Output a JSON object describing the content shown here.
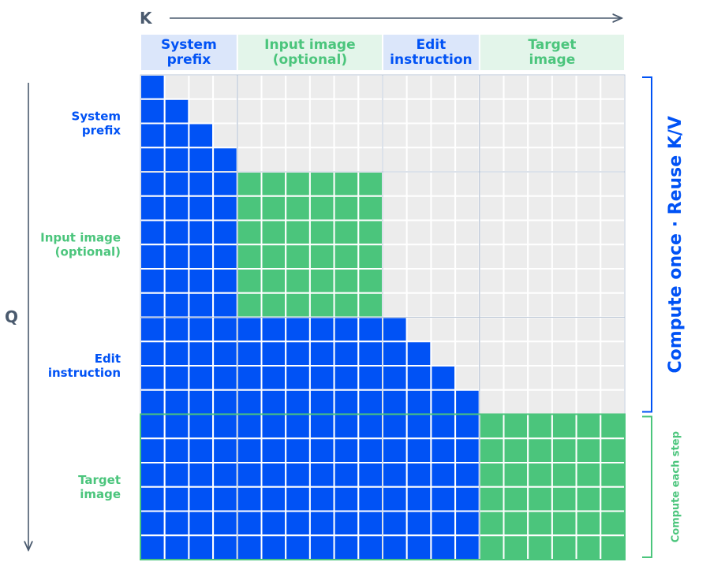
{
  "axes": {
    "k_label": "K",
    "q_label": "Q"
  },
  "colors": {
    "blue": "#0052f5",
    "green": "#4bc57c",
    "empty": "#ececec",
    "grid_line": "#ffffff",
    "block_border": "#b8c4d4",
    "header_blue_bg": "#dbe6fa",
    "header_green_bg": "#e3f5ea",
    "axis_color": "#4a5a6e",
    "green_text": "#4bc57c",
    "blue_text": "#0052f5"
  },
  "segments": [
    {
      "id": "system-prefix",
      "lines": [
        "System",
        "prefix"
      ],
      "tokens": 4,
      "color": "blue"
    },
    {
      "id": "input-image",
      "lines": [
        "Input image",
        "(optional)"
      ],
      "tokens": 6,
      "color": "green"
    },
    {
      "id": "edit-instruction",
      "lines": [
        "Edit",
        "instruction"
      ],
      "tokens": 4,
      "color": "blue"
    },
    {
      "id": "target-image",
      "lines": [
        "Target",
        "image"
      ],
      "tokens": 6,
      "color": "green"
    }
  ],
  "mask_rules": {
    "blue_segments": "causal",
    "green_segments": "full_bidirectional_block"
  },
  "brackets": {
    "reuse": {
      "label": "Compute once · Reuse K/V",
      "rows": [
        0,
        14
      ],
      "color": "blue"
    },
    "each_step": {
      "label": "Compute each step",
      "rows": [
        14,
        20
      ],
      "color": "green"
    }
  }
}
